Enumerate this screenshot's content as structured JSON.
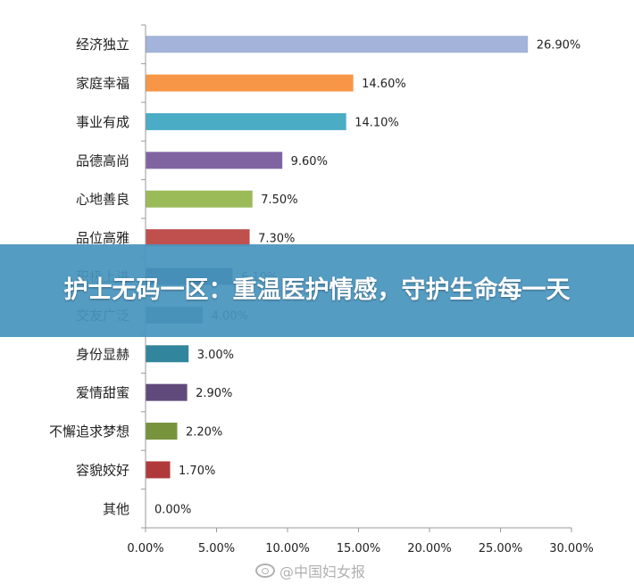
{
  "banner": {
    "text": "护士无码一区：重温医护情感，守护生命每一天"
  },
  "watermark": {
    "text": "@中国妇女报",
    "icon": "weibo-icon"
  },
  "chart_data": {
    "type": "bar",
    "orientation": "horizontal",
    "title": "",
    "xlabel": "",
    "ylabel": "",
    "xlim": [
      0,
      30
    ],
    "x_ticks": [
      "0.00%",
      "5.00%",
      "10.00%",
      "15.00%",
      "20.00%",
      "25.00%",
      "30.00%"
    ],
    "x_tick_values": [
      0,
      5,
      10,
      15,
      20,
      25,
      30
    ],
    "grid": false,
    "legend": "none",
    "categories": [
      "经济独立",
      "家庭幸福",
      "事业有成",
      "品德高尚",
      "心地善良",
      "品位高雅",
      "积极上进",
      "交友广泛",
      "身份显赫",
      "爱情甜蜜",
      "不懈追求梦想",
      "容貌姣好",
      "其他"
    ],
    "values": [
      26.9,
      14.6,
      14.1,
      9.6,
      7.5,
      7.3,
      6.1,
      4.0,
      3.0,
      2.9,
      2.2,
      1.7,
      0.0
    ],
    "value_labels": [
      "26.90%",
      "14.60%",
      "14.10%",
      "9.60%",
      "7.50%",
      "7.30%",
      "6.10%",
      "4.00%",
      "3.00%",
      "2.90%",
      "2.20%",
      "1.70%",
      "0.00%"
    ],
    "colors": [
      "#a3b3d9",
      "#f79646",
      "#4bacc6",
      "#8064a2",
      "#9bbb59",
      "#c0504d",
      "#2c4d75",
      "#4f6d7a",
      "#31859c",
      "#604a7b",
      "#77933c",
      "#b03a3a",
      "#7f7f7f"
    ]
  }
}
